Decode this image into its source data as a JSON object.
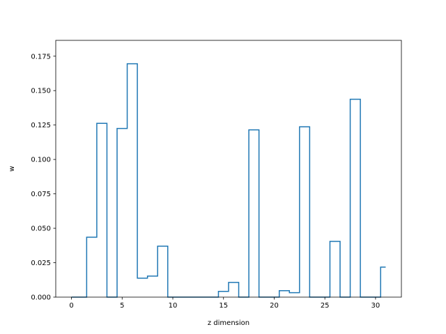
{
  "chart_data": {
    "type": "line",
    "style": "step-mid",
    "title": "",
    "xlabel": "z dimension",
    "ylabel": "w",
    "xlim": [
      -1.55,
      32.55
    ],
    "ylim": [
      0,
      0.1865
    ],
    "grid": false,
    "legend": "none",
    "line_color": "#1f77b4",
    "x": [
      0,
      1,
      2,
      3,
      4,
      5,
      6,
      7,
      8,
      9,
      10,
      11,
      12,
      13,
      14,
      15,
      16,
      17,
      18,
      19,
      20,
      21,
      22,
      23,
      24,
      25,
      26,
      27,
      28,
      29,
      30,
      31
    ],
    "values": [
      0,
      0,
      0.0435,
      0.1262,
      0,
      0.1225,
      0.1695,
      0.0138,
      0.0153,
      0.037,
      0,
      0,
      0,
      0,
      0,
      0.0042,
      0.0107,
      0,
      0.1215,
      0,
      0,
      0.0047,
      0.0032,
      0.1237,
      0,
      0,
      0.0405,
      0,
      0.1437,
      0,
      0,
      0.0218
    ],
    "xticks": [
      0,
      5,
      10,
      15,
      20,
      25,
      30
    ],
    "xtick_labels": [
      "0",
      "5",
      "10",
      "15",
      "20",
      "25",
      "30"
    ],
    "yticks": [
      0,
      0.025,
      0.05,
      0.075,
      0.1,
      0.125,
      0.15,
      0.175
    ],
    "ytick_labels": [
      "0.000",
      "0.025",
      "0.050",
      "0.075",
      "0.100",
      "0.125",
      "0.150",
      "0.175"
    ]
  }
}
